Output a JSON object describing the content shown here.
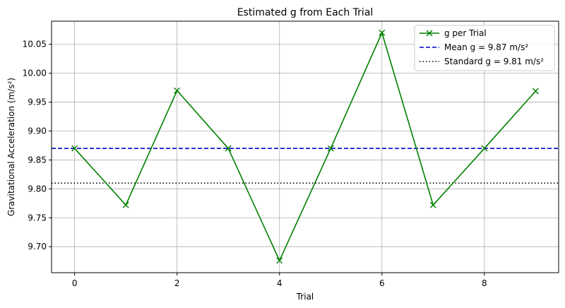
{
  "chart_data": {
    "type": "line",
    "title": "Estimated g from Each Trial",
    "xlabel": "Trial",
    "ylabel": "Gravitational Acceleration (m/s²)",
    "xlim": [
      -0.45,
      9.45
    ],
    "ylim": [
      9.655,
      10.09
    ],
    "xticks": [
      0,
      2,
      4,
      6,
      8
    ],
    "xtick_labels": [
      "0",
      "2",
      "4",
      "6",
      "8"
    ],
    "yticks": [
      9.7,
      9.75,
      9.8,
      9.85,
      9.9,
      9.95,
      10.0,
      10.05
    ],
    "ytick_labels": [
      "9.70",
      "9.75",
      "9.80",
      "9.85",
      "9.90",
      "9.95",
      "10.00",
      "10.05"
    ],
    "grid": true,
    "legend_position": "top-right",
    "series": [
      {
        "name": "g per Trial",
        "color": "#008000",
        "marker": "x",
        "x": [
          0,
          1,
          2,
          3,
          4,
          5,
          6,
          7,
          8,
          9
        ],
        "y": [
          9.87,
          9.772,
          9.97,
          9.87,
          9.676,
          9.87,
          10.07,
          9.772,
          9.87,
          9.969
        ]
      }
    ],
    "reference_lines": [
      {
        "name": "Mean g = 9.87 m/s²",
        "y": 9.87,
        "color": "#0000cc",
        "style": "dashed"
      },
      {
        "name": "Standard g = 9.81 m/s²",
        "y": 9.81,
        "color": "#000000",
        "style": "dotted"
      }
    ]
  }
}
